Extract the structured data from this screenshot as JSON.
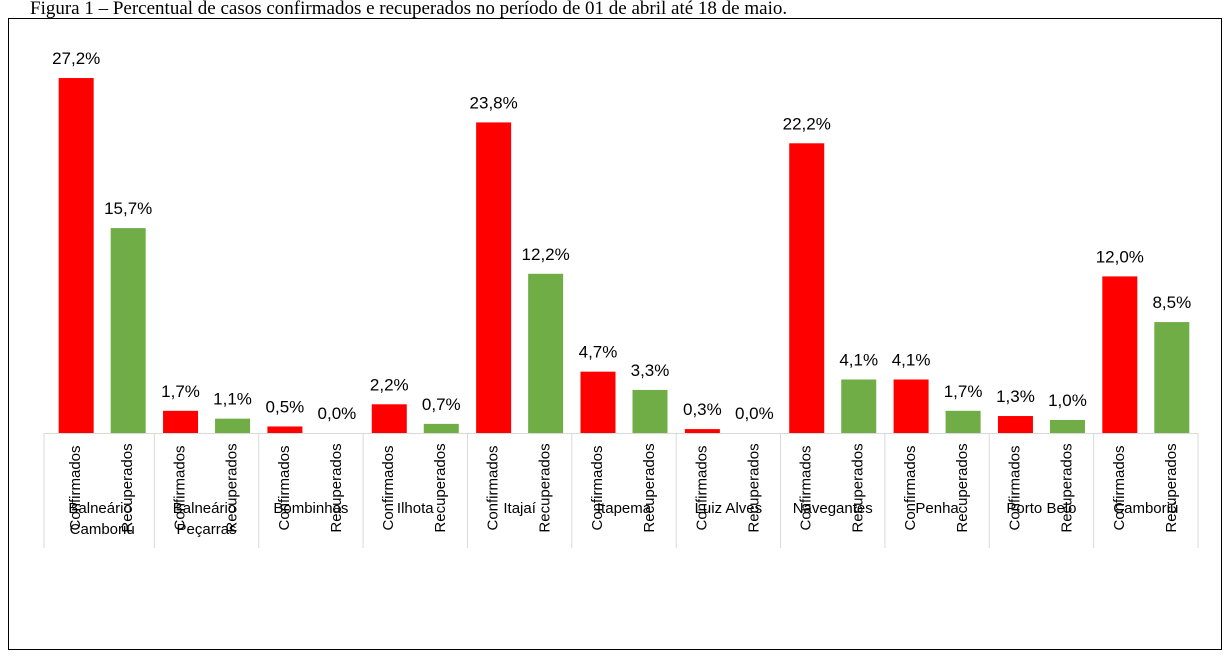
{
  "chart_data": {
    "type": "bar",
    "title": "Figura 1 – Percentual de casos confirmados e recuperados no período de 01 de abril até 18 de maio.",
    "categories": [
      "Balneário Camboriú",
      "Balneário Peçarras",
      "Bombinhas",
      "Ilhota",
      "Itajaí",
      "Itapema",
      "Luiz Alves",
      "Navegantes",
      "Penha",
      "Porto Belo",
      "Camboriú"
    ],
    "series": [
      {
        "name": "Confirmados",
        "color": "#ff0000",
        "values": [
          27.2,
          1.7,
          0.5,
          2.2,
          23.8,
          4.7,
          0.3,
          22.2,
          4.1,
          1.3,
          12.0
        ],
        "value_labels": [
          "27,2%",
          "1,7%",
          "0,5%",
          "2,2%",
          "23,8%",
          "4,7%",
          "0,3%",
          "22,2%",
          "4,1%",
          "1,3%",
          "12,0%"
        ]
      },
      {
        "name": "Recuperados",
        "color": "#70ad47",
        "values": [
          15.7,
          1.1,
          0.0,
          0.7,
          12.2,
          3.3,
          0.0,
          4.1,
          1.7,
          1.0,
          8.5
        ],
        "value_labels": [
          "15,7%",
          "1,1%",
          "0,0%",
          "0,7%",
          "12,2%",
          "3,3%",
          "0,0%",
          "4,1%",
          "1,7%",
          "1,0%",
          "8,5%"
        ]
      }
    ]
  }
}
